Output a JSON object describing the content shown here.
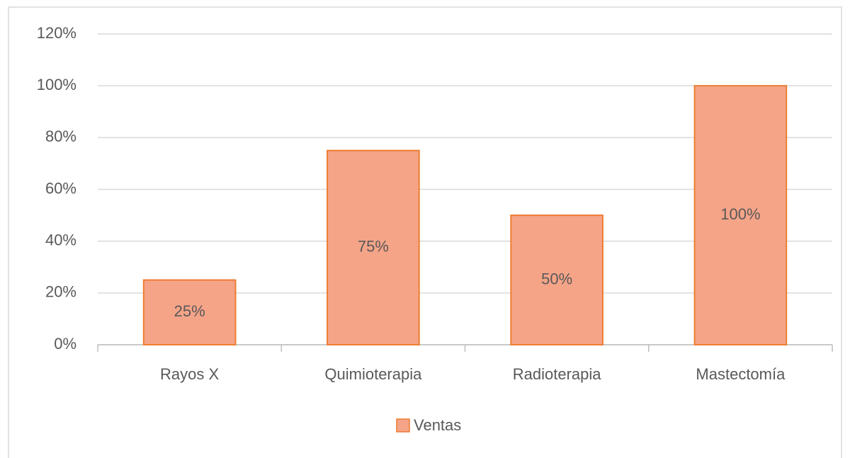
{
  "chart_data": {
    "type": "bar",
    "categories": [
      "Rayos X",
      "Quimioterapia",
      "Radioterapia",
      "Mastectomía"
    ],
    "series": [
      {
        "name": "Ventas",
        "color": "#f5a488",
        "edge_color": "#ed7d31",
        "values": [
          25,
          75,
          50,
          100
        ],
        "value_labels": [
          "25%",
          "75%",
          "50%",
          "100%"
        ]
      }
    ],
    "ylim": [
      0,
      120
    ],
    "yticks": [
      {
        "value": 0,
        "label": "0%"
      },
      {
        "value": 20,
        "label": "20%"
      },
      {
        "value": 40,
        "label": "40%"
      },
      {
        "value": 60,
        "label": "60%"
      },
      {
        "value": 80,
        "label": "80%"
      },
      {
        "value": 100,
        "label": "100%"
      },
      {
        "value": 120,
        "label": "120%"
      }
    ],
    "grid": true,
    "legend": "bottom"
  }
}
